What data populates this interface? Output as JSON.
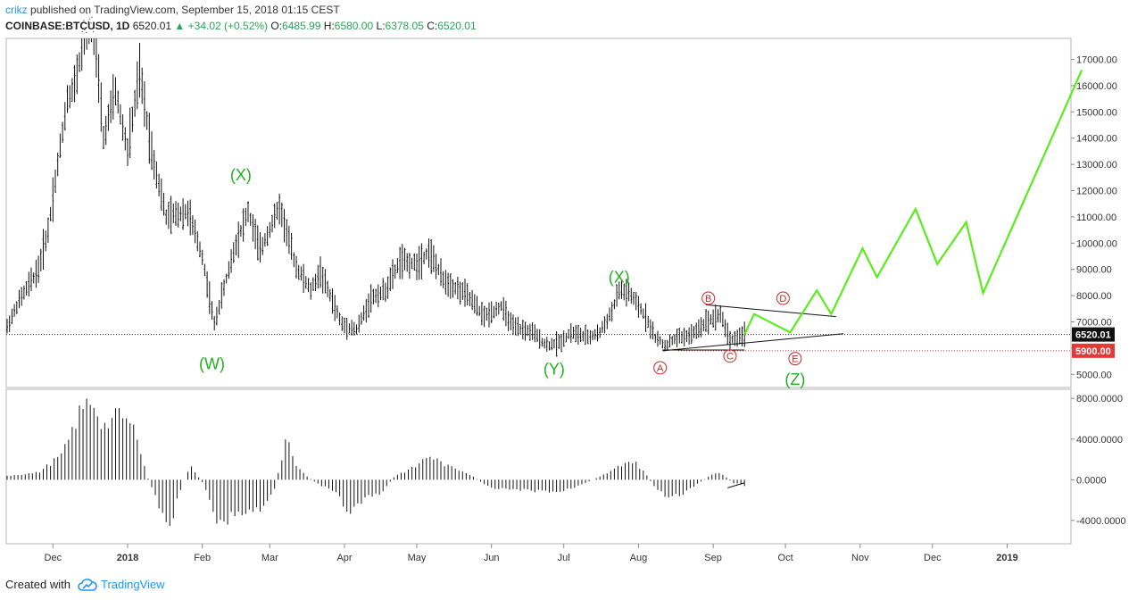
{
  "header": {
    "user": "crikz",
    "published": "published on TradingView.com, September 15, 2018 01:15 CEST",
    "symbol": "COINBASE:BTCUSD, 1D",
    "last": "6520.01",
    "change": "▲ +34.02 (+0.52%)",
    "o_label": "O:",
    "o_value": "6485.99",
    "h_label": "H:",
    "h_value": "6580.00",
    "l_label": "L:",
    "l_value": "6378.05",
    "c_label": "C:",
    "c_value": "6520.01"
  },
  "footer": {
    "created_with": "Created with",
    "brand": "TradingView",
    "logo_icon": "tradingview-cloud-icon"
  },
  "chart_data": {
    "type": "bar",
    "price_axis": {
      "ticks": [
        "17000.00",
        "16000.00",
        "15000.00",
        "14000.00",
        "13000.00",
        "12000.00",
        "11000.00",
        "10000.00",
        "9000.00",
        "8000.00",
        "7000.00",
        "6000.00",
        "5000.00"
      ],
      "range": [
        4500,
        17800
      ]
    },
    "osc_axis": {
      "ticks": [
        "8000.0000",
        "4000.0000",
        "0.0000",
        "-4000.0000"
      ],
      "range": [
        -6300,
        8900
      ]
    },
    "x_labels": [
      "Dec",
      "2018",
      "Feb",
      "Mar",
      "Apr",
      "May",
      "Jun",
      "Jul",
      "Aug",
      "Sep",
      "Oct",
      "Nov",
      "Dec",
      "2019"
    ],
    "last_price": {
      "label": "6520.01",
      "value": 6520.01
    },
    "stop_level": {
      "label": "5900.00",
      "value": 5900
    },
    "wave_labels_green": [
      {
        "text": "(X)",
        "date": "2018-02-17",
        "price": 12400
      },
      {
        "text": "(W)",
        "date": "2018-02-05",
        "price": 5200
      },
      {
        "text": "(X)",
        "date": "2018-07-24",
        "price": 8500
      },
      {
        "text": "(Y)",
        "date": "2018-06-27",
        "price": 5000
      },
      {
        "text": "(Z)",
        "date": "2018-10-05",
        "price": 4600
      }
    ],
    "wave_labels_red": [
      {
        "text": "A",
        "date": "2018-08-10",
        "price": 5250
      },
      {
        "text": "B",
        "date": "2018-08-30",
        "price": 7900
      },
      {
        "text": "C",
        "date": "2018-09-08",
        "price": 5700
      },
      {
        "text": "D",
        "date": "2018-09-30",
        "price": 7900
      },
      {
        "text": "E",
        "date": "2018-10-05",
        "price": 5600
      }
    ],
    "projection": [
      {
        "date": "2018-09-14",
        "price": 6520
      },
      {
        "date": "2018-09-18",
        "price": 7300
      },
      {
        "date": "2018-10-03",
        "price": 6600
      },
      {
        "date": "2018-10-14",
        "price": 8200
      },
      {
        "date": "2018-10-20",
        "price": 7300
      },
      {
        "date": "2018-11-02",
        "price": 9800
      },
      {
        "date": "2018-11-08",
        "price": 8700
      },
      {
        "date": "2018-11-24",
        "price": 11300
      },
      {
        "date": "2018-12-03",
        "price": 9200
      },
      {
        "date": "2018-12-15",
        "price": 10800
      },
      {
        "date": "2018-12-22",
        "price": 8100
      },
      {
        "date": "2019-02-01",
        "price": 16600
      }
    ],
    "trendlines": [
      {
        "from": {
          "date": "2018-08-29",
          "price": 7650
        },
        "to": {
          "date": "2018-10-22",
          "price": 7200
        }
      },
      {
        "from": {
          "date": "2018-08-11",
          "price": 5900
        },
        "to": {
          "date": "2018-10-25",
          "price": 6550
        }
      },
      {
        "from": {
          "date": "2018-08-11",
          "price": 5930
        },
        "to": {
          "date": "2018-09-14",
          "price": 5930
        }
      }
    ],
    "price_path": [
      {
        "date": "2017-11-12",
        "price": 6800
      },
      {
        "date": "2017-11-17",
        "price": 7800
      },
      {
        "date": "2017-11-25",
        "price": 9000
      },
      {
        "date": "2017-11-29",
        "price": 10500
      },
      {
        "date": "2017-12-07",
        "price": 15500
      },
      {
        "date": "2017-12-10",
        "price": 16000
      },
      {
        "date": "2017-12-17",
        "price": 19200
      },
      {
        "date": "2017-12-22",
        "price": 14000
      },
      {
        "date": "2017-12-27",
        "price": 15800
      },
      {
        "date": "2018-01-01",
        "price": 13500
      },
      {
        "date": "2018-01-06",
        "price": 16500
      },
      {
        "date": "2018-01-11",
        "price": 13500
      },
      {
        "date": "2018-01-17",
        "price": 11000
      },
      {
        "date": "2018-01-26",
        "price": 11200
      },
      {
        "date": "2018-02-01",
        "price": 9500
      },
      {
        "date": "2018-02-06",
        "price": 6900
      },
      {
        "date": "2018-02-10",
        "price": 8300
      },
      {
        "date": "2018-02-15",
        "price": 10000
      },
      {
        "date": "2018-02-20",
        "price": 11200
      },
      {
        "date": "2018-02-25",
        "price": 9700
      },
      {
        "date": "2018-03-05",
        "price": 11400
      },
      {
        "date": "2018-03-12",
        "price": 9100
      },
      {
        "date": "2018-03-18",
        "price": 8200
      },
      {
        "date": "2018-03-22",
        "price": 8900
      },
      {
        "date": "2018-03-31",
        "price": 6900
      },
      {
        "date": "2018-04-06",
        "price": 6700
      },
      {
        "date": "2018-04-12",
        "price": 7900
      },
      {
        "date": "2018-04-18",
        "price": 8200
      },
      {
        "date": "2018-04-24",
        "price": 9300
      },
      {
        "date": "2018-05-01",
        "price": 9200
      },
      {
        "date": "2018-05-06",
        "price": 9700
      },
      {
        "date": "2018-05-12",
        "price": 8600
      },
      {
        "date": "2018-05-22",
        "price": 8000
      },
      {
        "date": "2018-05-29",
        "price": 7200
      },
      {
        "date": "2018-06-05",
        "price": 7600
      },
      {
        "date": "2018-06-10",
        "price": 6800
      },
      {
        "date": "2018-06-18",
        "price": 6600
      },
      {
        "date": "2018-06-24",
        "price": 6100
      },
      {
        "date": "2018-06-29",
        "price": 6200
      },
      {
        "date": "2018-07-04",
        "price": 6600
      },
      {
        "date": "2018-07-11",
        "price": 6400
      },
      {
        "date": "2018-07-16",
        "price": 6600
      },
      {
        "date": "2018-07-21",
        "price": 7400
      },
      {
        "date": "2018-07-24",
        "price": 8200
      },
      {
        "date": "2018-07-28",
        "price": 8100
      },
      {
        "date": "2018-08-04",
        "price": 7200
      },
      {
        "date": "2018-08-08",
        "price": 6400
      },
      {
        "date": "2018-08-12",
        "price": 6100
      },
      {
        "date": "2018-08-17",
        "price": 6400
      },
      {
        "date": "2018-08-23",
        "price": 6500
      },
      {
        "date": "2018-08-29",
        "price": 7000
      },
      {
        "date": "2018-09-04",
        "price": 7300
      },
      {
        "date": "2018-09-08",
        "price": 6300
      },
      {
        "date": "2018-09-14",
        "price": 6520
      }
    ],
    "osc_path": [
      {
        "date": "2017-11-12",
        "value": 400
      },
      {
        "date": "2017-11-25",
        "value": 700
      },
      {
        "date": "2017-12-05",
        "value": 2500
      },
      {
        "date": "2017-12-12",
        "value": 6500
      },
      {
        "date": "2017-12-17",
        "value": 8000
      },
      {
        "date": "2017-12-22",
        "value": 5200
      },
      {
        "date": "2017-12-29",
        "value": 6500
      },
      {
        "date": "2018-01-05",
        "value": 4500
      },
      {
        "date": "2018-01-09",
        "value": 400
      },
      {
        "date": "2018-01-14",
        "value": -2500
      },
      {
        "date": "2018-01-18",
        "value": -5500
      },
      {
        "date": "2018-01-22",
        "value": -1500
      },
      {
        "date": "2018-01-27",
        "value": 1500
      },
      {
        "date": "2018-02-02",
        "value": -600
      },
      {
        "date": "2018-02-08",
        "value": -4500
      },
      {
        "date": "2018-02-14",
        "value": -3500
      },
      {
        "date": "2018-02-21",
        "value": -3000
      },
      {
        "date": "2018-02-26",
        "value": -3000
      },
      {
        "date": "2018-03-03",
        "value": -800
      },
      {
        "date": "2018-03-06",
        "value": 2000
      },
      {
        "date": "2018-03-08",
        "value": 4000
      },
      {
        "date": "2018-03-12",
        "value": 1200
      },
      {
        "date": "2018-03-20",
        "value": -300
      },
      {
        "date": "2018-03-28",
        "value": -1200
      },
      {
        "date": "2018-04-03",
        "value": -3300
      },
      {
        "date": "2018-04-10",
        "value": -1800
      },
      {
        "date": "2018-04-16",
        "value": -1400
      },
      {
        "date": "2018-04-22",
        "value": 400
      },
      {
        "date": "2018-04-30",
        "value": 1200
      },
      {
        "date": "2018-05-06",
        "value": 2400
      },
      {
        "date": "2018-05-14",
        "value": 1300
      },
      {
        "date": "2018-05-22",
        "value": 700
      },
      {
        "date": "2018-06-01",
        "value": -900
      },
      {
        "date": "2018-06-10",
        "value": -1000
      },
      {
        "date": "2018-06-20",
        "value": -1100
      },
      {
        "date": "2018-06-30",
        "value": -1200
      },
      {
        "date": "2018-07-08",
        "value": -500
      },
      {
        "date": "2018-07-16",
        "value": 300
      },
      {
        "date": "2018-07-22",
        "value": 1000
      },
      {
        "date": "2018-07-26",
        "value": 1700
      },
      {
        "date": "2018-07-30",
        "value": 1800
      },
      {
        "date": "2018-08-03",
        "value": 900
      },
      {
        "date": "2018-08-08",
        "value": -800
      },
      {
        "date": "2018-08-13",
        "value": -1900
      },
      {
        "date": "2018-08-18",
        "value": -1500
      },
      {
        "date": "2018-08-24",
        "value": -700
      },
      {
        "date": "2018-08-30",
        "value": 300
      },
      {
        "date": "2018-09-04",
        "value": 800
      },
      {
        "date": "2018-09-09",
        "value": -300
      },
      {
        "date": "2018-09-14",
        "value": -600
      }
    ],
    "osc_signal": [
      {
        "date": "2018-09-07",
        "value": -800
      },
      {
        "date": "2018-09-14",
        "value": -300
      }
    ]
  }
}
